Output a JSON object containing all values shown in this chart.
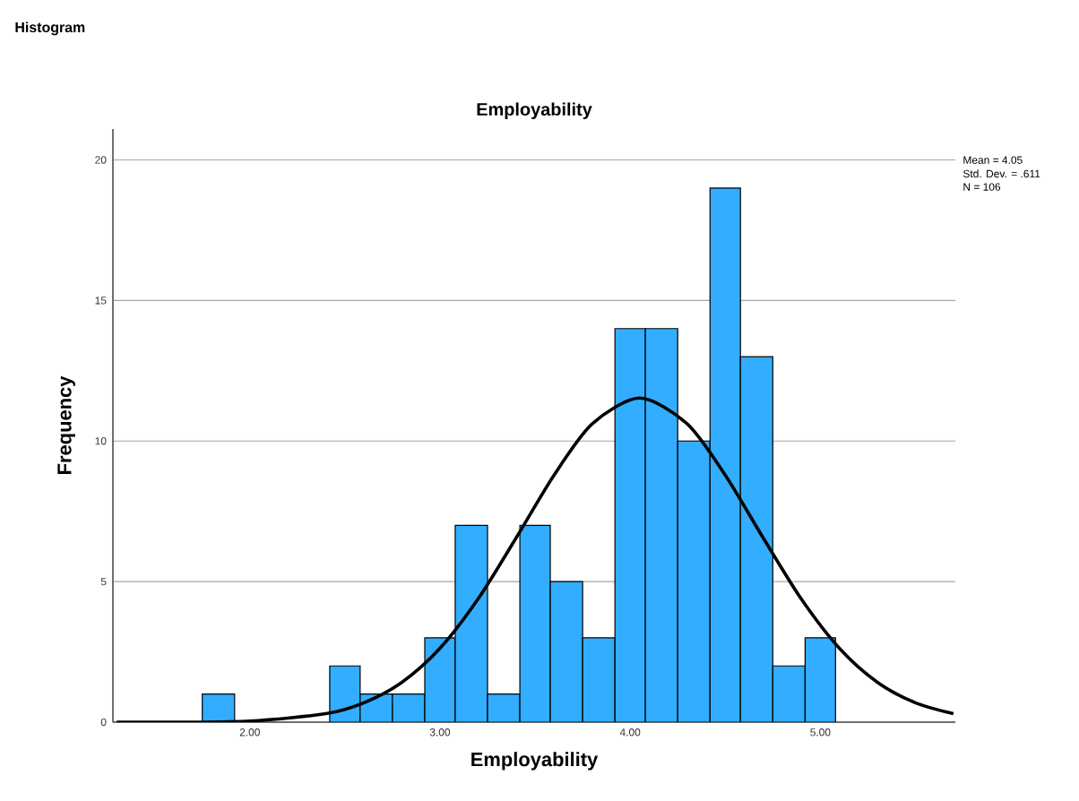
{
  "chart_data": {
    "type": "histogram",
    "title": "Employability",
    "xlabel": "Employability",
    "ylabel": "Frequency",
    "annotations": [
      "Histogram",
      "Mean = 4.05",
      "Std. Dev. = .611",
      "N = 106"
    ],
    "series": [
      {
        "color": "#33adff",
        "bins": [
          1.75,
          1.92
        ],
        "values": [
          1
        ]
      },
      {
        "color": "#33adff",
        "bins": [
          2.42,
          2.58,
          2.75,
          2.92,
          3.08,
          3.25,
          3.42,
          3.58,
          3.75,
          3.92,
          4.08,
          4.25,
          4.42,
          4.58,
          4.75,
          4.92,
          5.08
        ],
        "values": [
          2,
          1,
          1,
          3,
          7,
          1,
          7,
          5,
          3,
          14,
          14,
          10,
          19,
          13,
          2,
          3
        ]
      },
      {
        "type": "line",
        "color": "#000000",
        "x": [
          1.3,
          1.6,
          2.0,
          2.4,
          2.6,
          2.8,
          3.0,
          3.2,
          3.4,
          3.6,
          3.8,
          4.05,
          4.3,
          4.5,
          4.7,
          4.9,
          5.1,
          5.3,
          5.5,
          5.7
        ],
        "values": [
          0.0,
          0.0,
          0.04,
          0.3,
          0.69,
          1.42,
          2.63,
          4.38,
          6.55,
          8.79,
          10.61,
          11.53,
          10.61,
          8.79,
          6.55,
          4.38,
          2.63,
          1.42,
          0.69,
          0.3
        ]
      }
    ],
    "xlim": [
      1.28,
      5.71
    ],
    "ylim": [
      0,
      21.1
    ],
    "xticks": [
      {
        "value": 2,
        "label": "2.00"
      },
      {
        "value": 3,
        "label": "3.00"
      },
      {
        "value": 4,
        "label": "4.00"
      },
      {
        "value": 5,
        "label": "5.00"
      }
    ],
    "yticks": [
      0,
      5,
      10,
      15,
      20
    ],
    "grid": "y",
    "line_style": "solid"
  }
}
